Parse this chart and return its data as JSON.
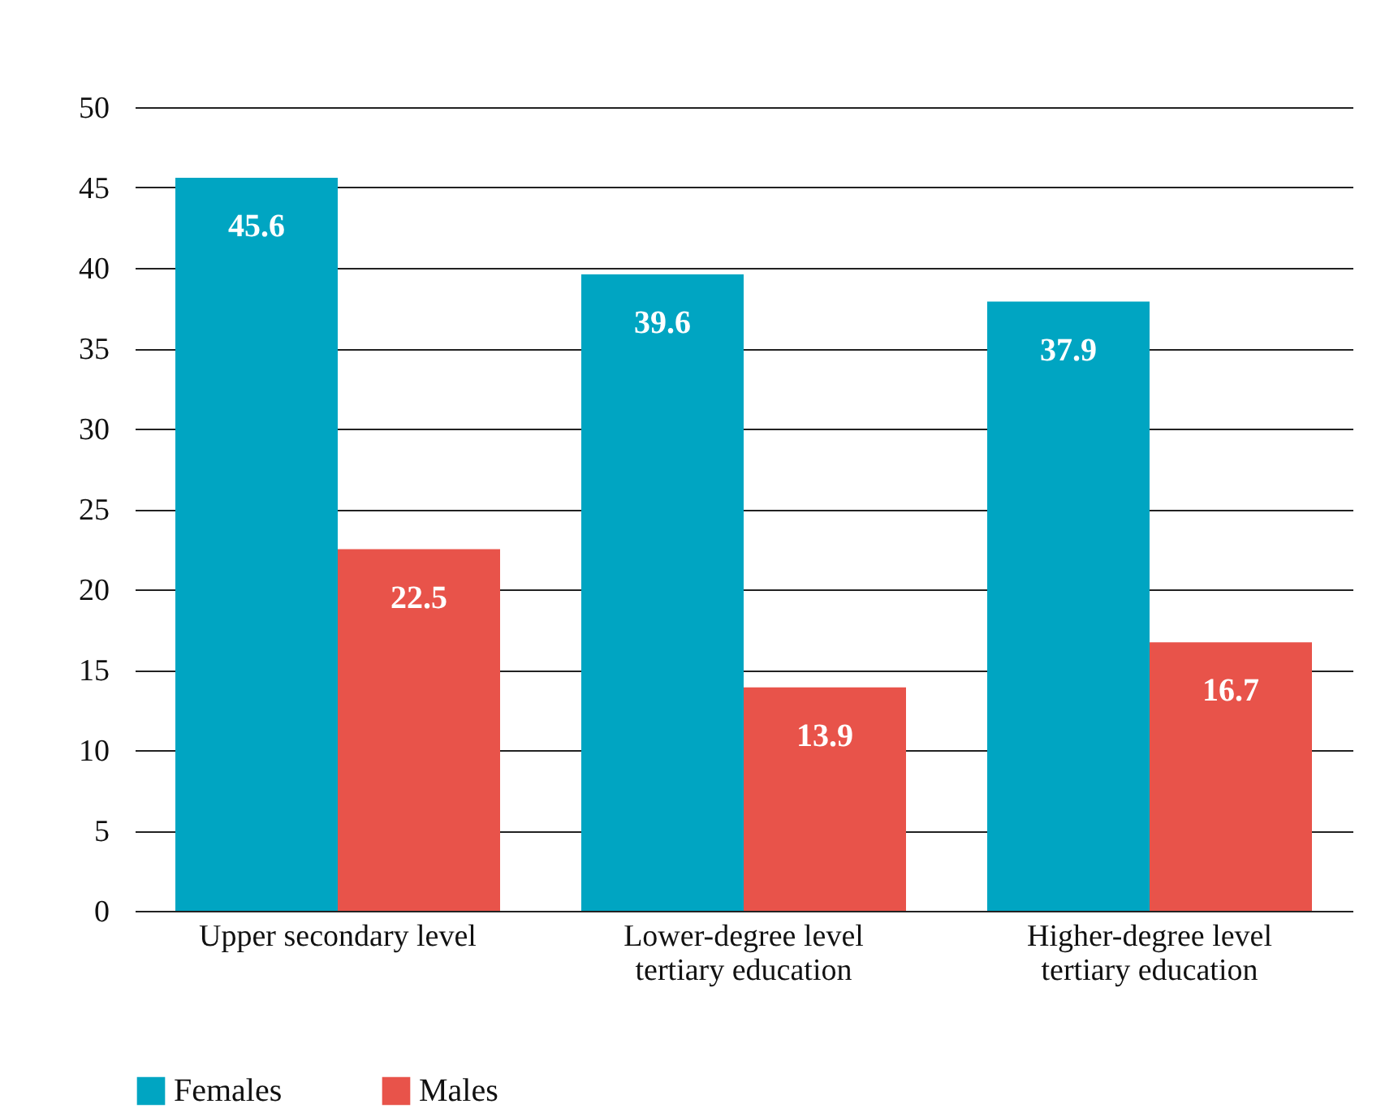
{
  "chart_data": {
    "type": "bar",
    "categories": [
      "Upper secondary level",
      "Lower-degree level\ntertiary education",
      "Higher-degree level\ntertiary education"
    ],
    "series": [
      {
        "name": "Females",
        "color": "#00a5c2",
        "values": [
          45.6,
          39.6,
          37.9
        ]
      },
      {
        "name": "Males",
        "color": "#e8534a",
        "values": [
          22.5,
          13.9,
          16.7
        ]
      }
    ],
    "ylim": [
      0,
      50
    ],
    "yticks": [
      0,
      5,
      10,
      15,
      20,
      25,
      30,
      35,
      40,
      45,
      50
    ],
    "grid": "y",
    "legend": "bottom",
    "data_labels": true
  }
}
